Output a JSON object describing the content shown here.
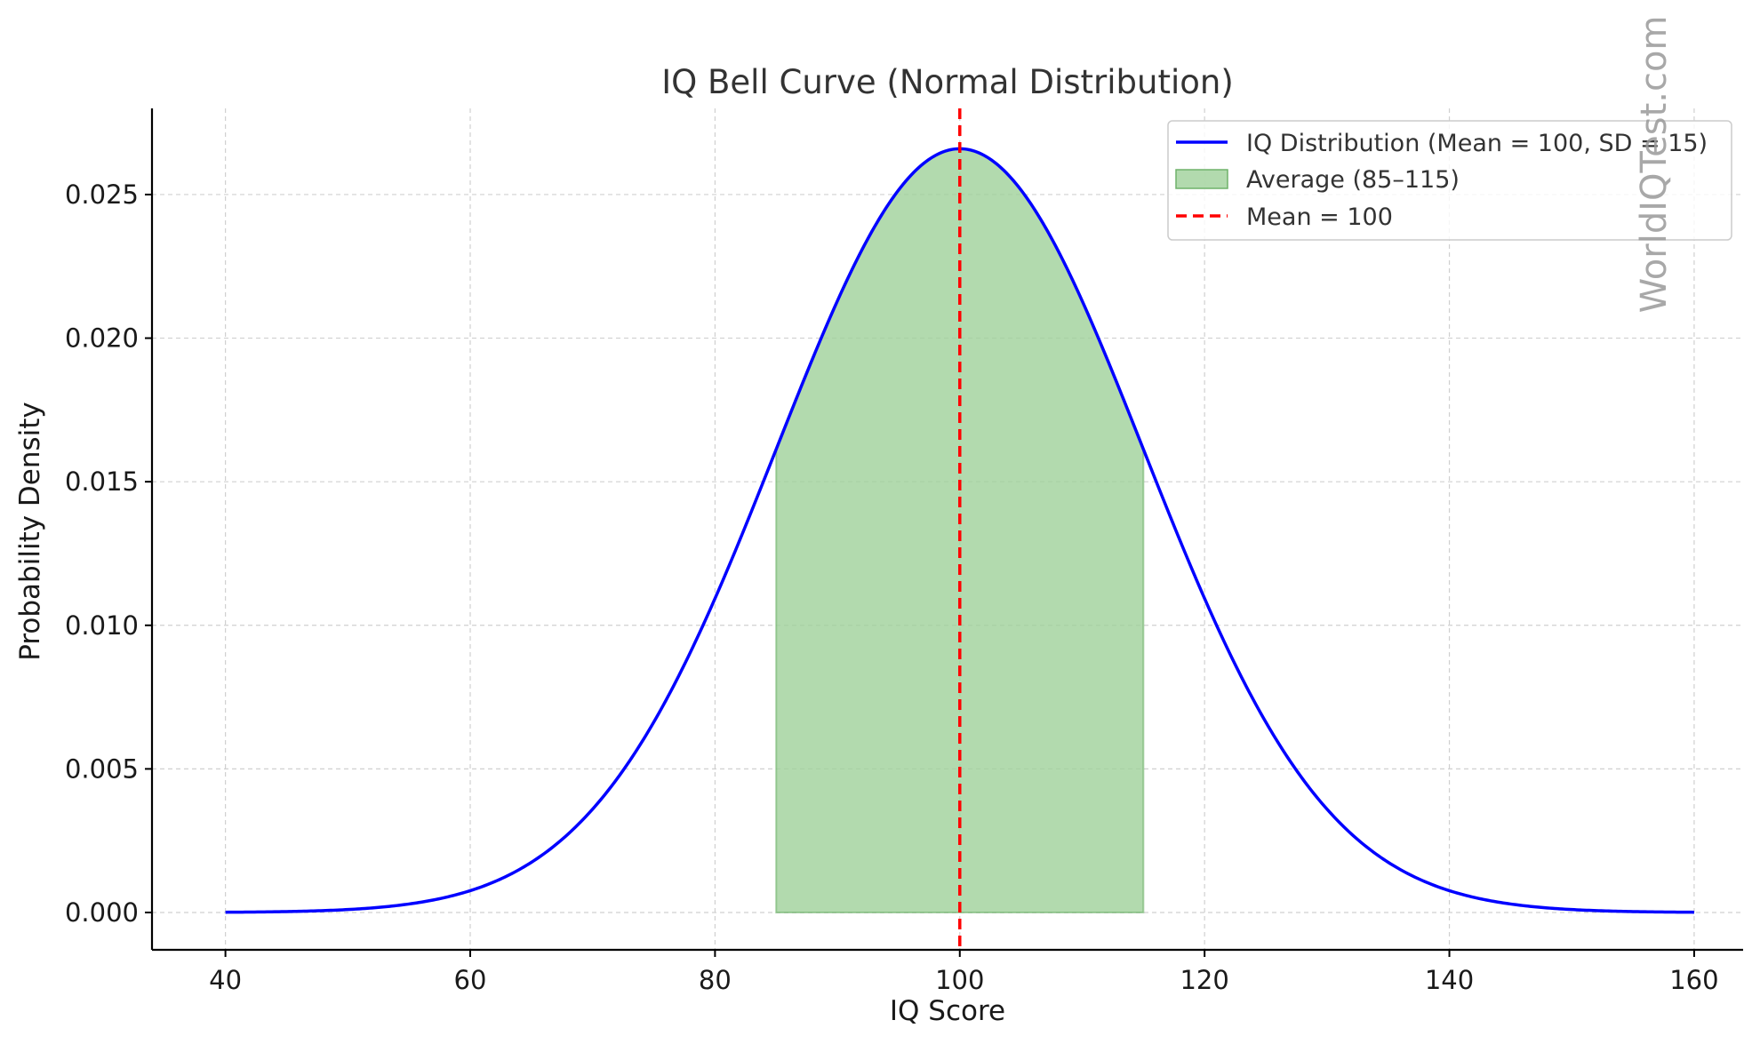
{
  "chart_data": {
    "type": "line",
    "title": "IQ Bell Curve (Normal Distribution)",
    "xlabel": "IQ Score",
    "ylabel": "Probability Density",
    "xlim": [
      34,
      164
    ],
    "ylim": [
      -0.0013,
      0.028
    ],
    "x_ticks": [
      40,
      60,
      80,
      100,
      120,
      140,
      160
    ],
    "x_tick_labels": [
      "40",
      "60",
      "80",
      "100",
      "120",
      "140",
      "160"
    ],
    "y_ticks": [
      0,
      0.005,
      0.01,
      0.015,
      0.02,
      0.025
    ],
    "y_tick_labels": [
      "0.000",
      "0.005",
      "0.010",
      "0.015",
      "0.020",
      "0.025"
    ],
    "grid": true,
    "series": [
      {
        "name": "IQ Distribution (Mean = 100, SD = 15)",
        "kind": "line",
        "color": "#0000ff",
        "mean": 100,
        "sd": 15,
        "x_range": [
          40,
          160
        ]
      },
      {
        "name": "Average (85–115)",
        "kind": "area",
        "color": "#9fd19a",
        "x_range": [
          85,
          115
        ]
      },
      {
        "name": "Mean = 100",
        "kind": "vline",
        "color": "#ff0000",
        "x": 100
      }
    ],
    "legend_position": "top-right"
  },
  "watermark": "WorldIQTest.com"
}
